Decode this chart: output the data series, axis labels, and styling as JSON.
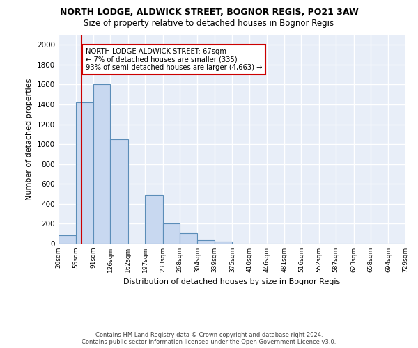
{
  "title1": "NORTH LODGE, ALDWICK STREET, BOGNOR REGIS, PO21 3AW",
  "title2": "Size of property relative to detached houses in Bognor Regis",
  "xlabel": "Distribution of detached houses by size in Bognor Regis",
  "ylabel": "Number of detached properties",
  "bin_labels": [
    "20sqm",
    "55sqm",
    "91sqm",
    "126sqm",
    "162sqm",
    "197sqm",
    "233sqm",
    "268sqm",
    "304sqm",
    "339sqm",
    "375sqm",
    "410sqm",
    "446sqm",
    "481sqm",
    "516sqm",
    "552sqm",
    "587sqm",
    "623sqm",
    "658sqm",
    "694sqm",
    "729sqm"
  ],
  "bin_edges": [
    20,
    55,
    91,
    126,
    162,
    197,
    233,
    268,
    304,
    339,
    375,
    410,
    446,
    481,
    516,
    552,
    587,
    623,
    658,
    694,
    729
  ],
  "bar_values": [
    85,
    1420,
    1600,
    1050,
    0,
    490,
    200,
    105,
    35,
    20,
    0,
    0,
    0,
    0,
    0,
    0,
    0,
    0,
    0,
    0
  ],
  "bar_color": "#c8d8f0",
  "bar_edge_color": "#5b8db8",
  "red_line_x": 67,
  "red_line_color": "#cc0000",
  "annotation_text_line1": "NORTH LODGE ALDWICK STREET: 67sqm",
  "annotation_text_line2": "← 7% of detached houses are smaller (335)",
  "annotation_text_line3": "93% of semi-detached houses are larger (4,663) →",
  "bg_color": "#e8eef8",
  "grid_color": "#ffffff",
  "footer1": "Contains HM Land Registry data © Crown copyright and database right 2024.",
  "footer2": "Contains public sector information licensed under the Open Government Licence v3.0.",
  "ylim": [
    0,
    2100
  ],
  "yticks": [
    0,
    200,
    400,
    600,
    800,
    1000,
    1200,
    1400,
    1600,
    1800,
    2000
  ]
}
